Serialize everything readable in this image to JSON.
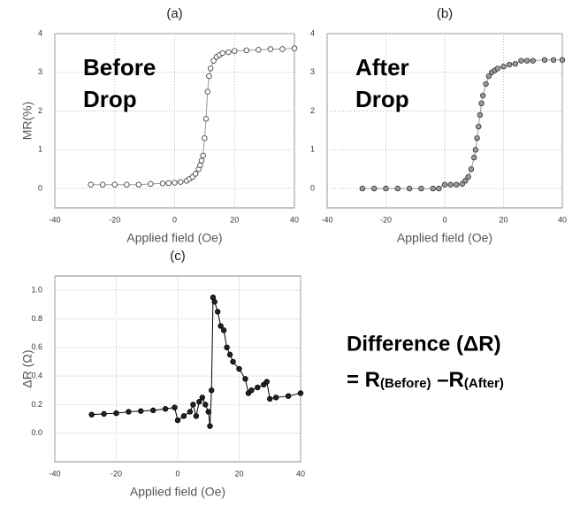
{
  "chart_data": [
    {
      "type": "scatter",
      "title": "(a)",
      "ylabel": "MR(%)",
      "xlabel": "Applied field (Oe)",
      "annotation": [
        "Before",
        "Drop"
      ],
      "xlim": [
        -40,
        40
      ],
      "xticks": [
        -40,
        -20,
        0,
        20,
        40
      ],
      "ylim": [
        -0.5,
        4
      ],
      "yticks": [
        0,
        1,
        2,
        3,
        4
      ],
      "grid": true,
      "marker_fill": "#ffffff",
      "color": "#333333",
      "line_color": "#999999",
      "x": [
        -28,
        -24,
        -20,
        -16,
        -12,
        -8,
        -4,
        -2,
        0,
        2,
        4,
        5,
        6,
        7,
        8,
        8.5,
        9,
        9.5,
        10,
        10.5,
        11,
        11.5,
        12,
        13,
        14,
        15,
        16,
        18,
        20,
        24,
        28,
        32,
        36,
        40
      ],
      "values": [
        0.1,
        0.1,
        0.1,
        0.1,
        0.1,
        0.12,
        0.13,
        0.14,
        0.15,
        0.17,
        0.2,
        0.25,
        0.3,
        0.38,
        0.5,
        0.6,
        0.72,
        0.85,
        1.3,
        1.8,
        2.5,
        2.9,
        3.1,
        3.3,
        3.4,
        3.45,
        3.5,
        3.52,
        3.55,
        3.57,
        3.58,
        3.6,
        3.6,
        3.62
      ]
    },
    {
      "type": "scatter",
      "title": "(b)",
      "xlabel": "Applied field (Oe)",
      "annotation": [
        "After",
        "Drop"
      ],
      "xlim": [
        -40,
        40
      ],
      "xticks": [
        -40,
        -20,
        0,
        20,
        40
      ],
      "ylim": [
        -0.5,
        4
      ],
      "yticks": [
        0,
        1,
        2,
        3,
        4
      ],
      "grid": true,
      "marker_fill": "#999999",
      "color": "#333333",
      "line_color": "#999999",
      "x": [
        -28,
        -24,
        -20,
        -16,
        -12,
        -8,
        -4,
        -2,
        0,
        2,
        4,
        6,
        7,
        8,
        9,
        10,
        10.5,
        11,
        11.5,
        12,
        12.5,
        13,
        14,
        15,
        16,
        17,
        18,
        20,
        22,
        24,
        26,
        28,
        30,
        34,
        37,
        40
      ],
      "values": [
        0,
        0,
        0,
        0,
        0,
        0,
        0,
        0,
        0.1,
        0.1,
        0.1,
        0.12,
        0.2,
        0.3,
        0.5,
        0.8,
        1.0,
        1.3,
        1.6,
        1.9,
        2.2,
        2.4,
        2.7,
        2.9,
        3.0,
        3.05,
        3.1,
        3.15,
        3.2,
        3.22,
        3.3,
        3.3,
        3.3,
        3.32,
        3.32,
        3.32
      ]
    },
    {
      "type": "scatter",
      "title": "(c)",
      "ylabel": "ΔR (Ω)",
      "xlabel": "Applied field (Oe)",
      "xlim": [
        -40,
        40
      ],
      "xticks": [
        -40,
        -20,
        0,
        20,
        40
      ],
      "ylim": [
        -0.2,
        1.1
      ],
      "yticks": [
        {
          "value": 0,
          "label": "0.0"
        },
        {
          "value": 0.2,
          "label": "0.2"
        },
        {
          "value": 0.4,
          "label": "0.4"
        },
        {
          "value": 0.6,
          "label": "0.6"
        },
        {
          "value": 0.8,
          "label": "0.8"
        },
        {
          "value": 1,
          "label": "1.0"
        }
      ],
      "grid": true,
      "marker_fill": "#222222",
      "color": "#000000",
      "line_color": "#000000",
      "x": [
        -28,
        -24,
        -20,
        -16,
        -12,
        -8,
        -4,
        -1,
        0,
        2,
        4,
        5,
        6,
        7,
        8,
        9,
        10,
        10.5,
        11,
        11.5,
        12,
        13,
        14,
        15,
        16,
        17,
        18,
        20,
        22,
        23,
        24,
        26,
        28,
        29,
        30,
        32,
        36,
        40
      ],
      "values": [
        0.13,
        0.135,
        0.14,
        0.15,
        0.155,
        0.16,
        0.17,
        0.18,
        0.09,
        0.12,
        0.15,
        0.2,
        0.12,
        0.22,
        0.25,
        0.2,
        0.15,
        0.05,
        0.3,
        0.95,
        0.92,
        0.85,
        0.75,
        0.72,
        0.6,
        0.55,
        0.5,
        0.45,
        0.38,
        0.28,
        0.3,
        0.32,
        0.34,
        0.36,
        0.24,
        0.25,
        0.26,
        0.28
      ]
    }
  ],
  "note": {
    "line1": "Difference (ΔR)",
    "line2": [
      "= R",
      "(Before)",
      " –R",
      "(After)"
    ]
  }
}
